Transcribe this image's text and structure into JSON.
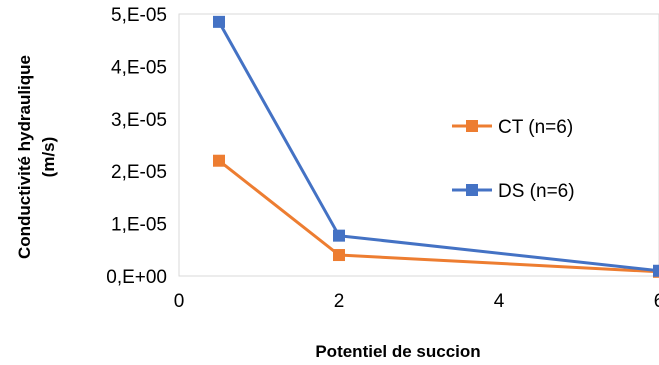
{
  "chart_data": {
    "type": "line",
    "xlabel": "Potentiel de succion",
    "ylabel_line1": "Conductivité hydraulique",
    "ylabel_line2": "(m/s)",
    "xlim": [
      0,
      6
    ],
    "ylim": [
      0,
      5e-05
    ],
    "x_ticks": [
      0,
      2,
      4,
      6
    ],
    "x_tick_labels": [
      "0",
      "2",
      "4",
      "6"
    ],
    "y_ticks": [
      0,
      1e-05,
      2e-05,
      3e-05,
      4e-05,
      5e-05
    ],
    "y_tick_labels": [
      "0,E+00",
      "1,E-05",
      "2,E-05",
      "3,E-05",
      "4,E-05",
      "5,E-05"
    ],
    "grid": false,
    "legend_position": "right",
    "series": [
      {
        "name": "CT (n=6)",
        "color": "#ED7D31",
        "marker": "square",
        "x": [
          0.5,
          2,
          6
        ],
        "y": [
          2.2e-05,
          4e-06,
          8e-07
        ]
      },
      {
        "name": "DS (n=6)",
        "color": "#4472C4",
        "marker": "square",
        "x": [
          0.5,
          2,
          6
        ],
        "y": [
          4.85e-05,
          7.7e-06,
          1e-06
        ]
      }
    ]
  }
}
